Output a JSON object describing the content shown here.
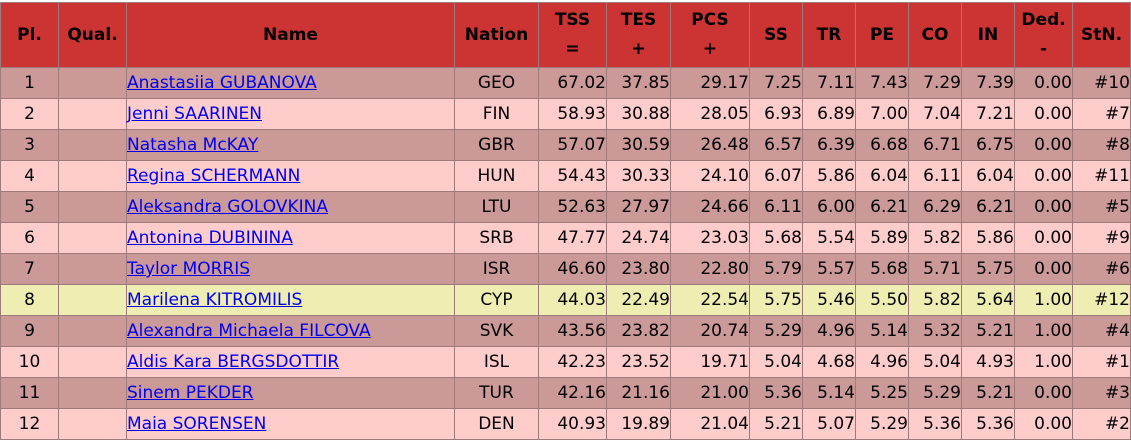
{
  "headers": {
    "pl": "Pl.",
    "qual": "Qual.",
    "name": "Name",
    "nation": "Nation",
    "tss": "TSS",
    "tss_sym": "=",
    "tes": "TES",
    "tes_sym": "+",
    "pcs": "PCS",
    "pcs_sym": "+",
    "ss": "SS",
    "tr": "TR",
    "pe": "PE",
    "co": "CO",
    "in": "IN",
    "ded": "Ded.",
    "ded_sym": "-",
    "stn": "StN."
  },
  "rows": [
    {
      "pl": "1",
      "qual": "",
      "name": "Anastasiia GUBANOVA",
      "nation": "GEO",
      "tss": "67.02",
      "tes": "37.85",
      "pcs": "29.17",
      "ss": "7.25",
      "tr": "7.11",
      "pe": "7.43",
      "co": "7.29",
      "in": "7.39",
      "ded": "0.00",
      "stn": "#10"
    },
    {
      "pl": "2",
      "qual": "",
      "name": "Jenni SAARINEN",
      "nation": "FIN",
      "tss": "58.93",
      "tes": "30.88",
      "pcs": "28.05",
      "ss": "6.93",
      "tr": "6.89",
      "pe": "7.00",
      "co": "7.04",
      "in": "7.21",
      "ded": "0.00",
      "stn": "#7"
    },
    {
      "pl": "3",
      "qual": "",
      "name": "Natasha McKAY",
      "nation": "GBR",
      "tss": "57.07",
      "tes": "30.59",
      "pcs": "26.48",
      "ss": "6.57",
      "tr": "6.39",
      "pe": "6.68",
      "co": "6.71",
      "in": "6.75",
      "ded": "0.00",
      "stn": "#8"
    },
    {
      "pl": "4",
      "qual": "",
      "name": "Regina SCHERMANN",
      "nation": "HUN",
      "tss": "54.43",
      "tes": "30.33",
      "pcs": "24.10",
      "ss": "6.07",
      "tr": "5.86",
      "pe": "6.04",
      "co": "6.11",
      "in": "6.04",
      "ded": "0.00",
      "stn": "#11"
    },
    {
      "pl": "5",
      "qual": "",
      "name": "Aleksandra GOLOVKINA",
      "nation": "LTU",
      "tss": "52.63",
      "tes": "27.97",
      "pcs": "24.66",
      "ss": "6.11",
      "tr": "6.00",
      "pe": "6.21",
      "co": "6.29",
      "in": "6.21",
      "ded": "0.00",
      "stn": "#5"
    },
    {
      "pl": "6",
      "qual": "",
      "name": "Antonina DUBININA",
      "nation": "SRB",
      "tss": "47.77",
      "tes": "24.74",
      "pcs": "23.03",
      "ss": "5.68",
      "tr": "5.54",
      "pe": "5.89",
      "co": "5.82",
      "in": "5.86",
      "ded": "0.00",
      "stn": "#9"
    },
    {
      "pl": "7",
      "qual": "",
      "name": "Taylor MORRIS",
      "nation": "ISR",
      "tss": "46.60",
      "tes": "23.80",
      "pcs": "22.80",
      "ss": "5.79",
      "tr": "5.57",
      "pe": "5.68",
      "co": "5.71",
      "in": "5.75",
      "ded": "0.00",
      "stn": "#6"
    },
    {
      "pl": "8",
      "qual": "",
      "name": "Marilena KITROMILIS",
      "nation": "CYP",
      "tss": "44.03",
      "tes": "22.49",
      "pcs": "22.54",
      "ss": "5.75",
      "tr": "5.46",
      "pe": "5.50",
      "co": "5.82",
      "in": "5.64",
      "ded": "1.00",
      "stn": "#12"
    },
    {
      "pl": "9",
      "qual": "",
      "name": "Alexandra Michaela FILCOVA",
      "nation": "SVK",
      "tss": "43.56",
      "tes": "23.82",
      "pcs": "20.74",
      "ss": "5.29",
      "tr": "4.96",
      "pe": "5.14",
      "co": "5.32",
      "in": "5.21",
      "ded": "1.00",
      "stn": "#4"
    },
    {
      "pl": "10",
      "qual": "",
      "name": "Aldis Kara BERGSDOTTIR",
      "nation": "ISL",
      "tss": "42.23",
      "tes": "23.52",
      "pcs": "19.71",
      "ss": "5.04",
      "tr": "4.68",
      "pe": "4.96",
      "co": "5.04",
      "in": "4.93",
      "ded": "1.00",
      "stn": "#1"
    },
    {
      "pl": "11",
      "qual": "",
      "name": "Sinem PEKDER",
      "nation": "TUR",
      "tss": "42.16",
      "tes": "21.16",
      "pcs": "21.00",
      "ss": "5.36",
      "tr": "5.14",
      "pe": "5.25",
      "co": "5.29",
      "in": "5.21",
      "ded": "0.00",
      "stn": "#3"
    },
    {
      "pl": "12",
      "qual": "",
      "name": "Maia SORENSEN",
      "nation": "DEN",
      "tss": "40.93",
      "tes": "19.89",
      "pcs": "21.04",
      "ss": "5.21",
      "tr": "5.07",
      "pe": "5.29",
      "co": "5.36",
      "in": "5.36",
      "ded": "0.00",
      "stn": "#2"
    }
  ],
  "highlighted_row": "8",
  "colors": {
    "header_bg": "#cc3333",
    "row_odd": "#cc9999",
    "row_even": "#ffcccc",
    "row_highlight": "#eeeeb3",
    "link": "#0000ee"
  }
}
